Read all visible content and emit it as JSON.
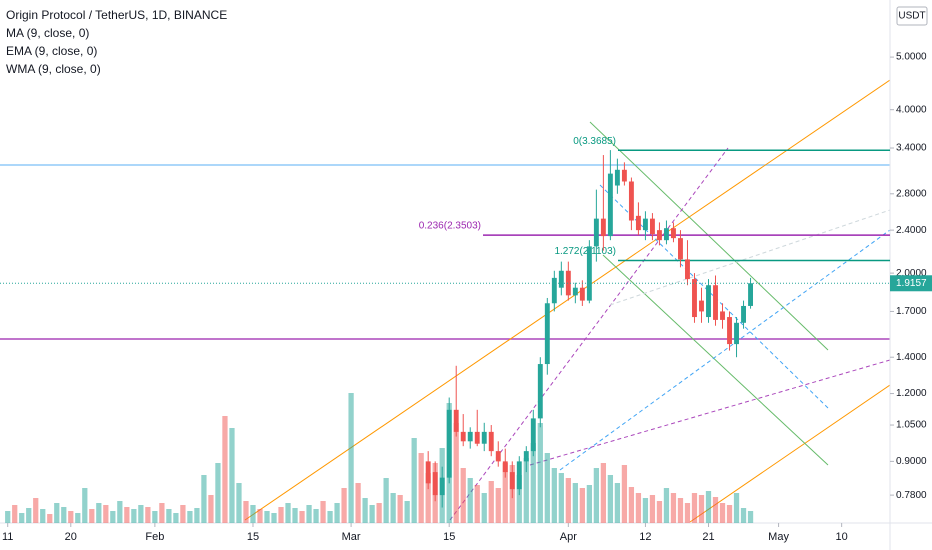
{
  "chart_data": {
    "type": "candlestick",
    "title": "Origin Protocol / TetherUS, 1D, BINANCE",
    "indicators": [
      "MA (9, close, 0)",
      "EMA (9, close, 0)",
      "WMA (9, close, 0)"
    ],
    "currency": "USDT",
    "log_scale": true,
    "up_color": "#26a69a",
    "down_color": "#ef5350",
    "ylim": [
      0.693,
      6.37
    ],
    "yticks": [
      {
        "value": 5,
        "label": "5.0000"
      },
      {
        "value": 4,
        "label": "4.0000"
      },
      {
        "value": 3.4,
        "label": "3.4000"
      },
      {
        "value": 2.8,
        "label": "2.8000"
      },
      {
        "value": 2.4,
        "label": "2.4000"
      },
      {
        "value": 2,
        "label": "2.0000"
      },
      {
        "value": 1.7,
        "label": "1.7000"
      },
      {
        "value": 1.4,
        "label": "1.4000"
      },
      {
        "value": 1.2,
        "label": "1.2000"
      },
      {
        "value": 1.05,
        "label": "1.0500"
      },
      {
        "value": 0.9,
        "label": "0.9000"
      },
      {
        "value": 0.78,
        "label": "0.7800"
      }
    ],
    "xlim": [
      -1.1,
      125.9
    ],
    "xticks": [
      {
        "value": 0,
        "label": "11"
      },
      {
        "value": 9,
        "label": "20"
      },
      {
        "value": 21,
        "label": "Feb"
      },
      {
        "value": 35,
        "label": "15"
      },
      {
        "value": 49,
        "label": "Mar"
      },
      {
        "value": 63,
        "label": "15"
      },
      {
        "value": 80,
        "label": "Apr"
      },
      {
        "value": 91,
        "label": "12"
      },
      {
        "value": 100,
        "label": "21"
      },
      {
        "value": 110,
        "label": "May"
      },
      {
        "value": 119,
        "label": "10"
      }
    ],
    "last_price": {
      "value": 1.9157,
      "label": "1.9157"
    },
    "candles": {
      "x": [
        60,
        61,
        62,
        63,
        64,
        65,
        66,
        67,
        68,
        69,
        70,
        71,
        72,
        73,
        74,
        75,
        76,
        77,
        78,
        79,
        80,
        81,
        82,
        83,
        84,
        85,
        86,
        87,
        88,
        89,
        90,
        91,
        92,
        93,
        94,
        95,
        96,
        97,
        98,
        99,
        100,
        101,
        102,
        103,
        104,
        105,
        106
      ],
      "open": [
        0.9,
        0.86,
        0.78,
        0.84,
        1.12,
        1.02,
        0.98,
        1.02,
        0.97,
        1.02,
        0.94,
        0.9,
        0.86,
        0.8,
        0.9,
        0.94,
        1.08,
        1.36,
        1.76,
        1.88,
        2.02,
        1.82,
        1.88,
        1.78,
        2.24,
        2.52,
        2.34,
        2.9,
        3.1,
        2.95,
        2.55,
        2.4,
        2.52,
        2.4,
        2.3,
        2.42,
        2.32,
        2.12,
        1.95,
        1.78,
        1.66,
        1.9,
        1.7,
        1.66,
        1.48,
        1.62,
        1.74
      ],
      "high": [
        0.94,
        0.9,
        0.88,
        1.18,
        1.35,
        1.1,
        1.04,
        1.12,
        1.06,
        1.05,
        0.98,
        0.95,
        0.9,
        0.92,
        0.96,
        1.12,
        1.4,
        1.8,
        2.02,
        2.1,
        2.1,
        1.92,
        1.94,
        2.3,
        2.85,
        3.3,
        3.37,
        3.25,
        3.2,
        3.0,
        2.7,
        2.6,
        2.58,
        2.48,
        2.5,
        2.48,
        2.4,
        2.3,
        2.0,
        1.88,
        1.95,
        1.98,
        1.76,
        1.7,
        1.66,
        1.78,
        1.96
      ],
      "low": [
        0.8,
        0.76,
        0.74,
        0.82,
        1.0,
        0.96,
        0.95,
        0.96,
        0.94,
        0.92,
        0.88,
        0.84,
        0.77,
        0.78,
        0.86,
        0.92,
        1.04,
        1.3,
        1.7,
        1.82,
        1.78,
        1.76,
        1.74,
        1.76,
        2.1,
        2.2,
        2.3,
        2.8,
        2.9,
        2.4,
        2.35,
        2.3,
        2.3,
        2.25,
        2.26,
        2.28,
        2.05,
        1.9,
        1.62,
        1.62,
        1.62,
        1.6,
        1.58,
        1.44,
        1.4,
        1.58,
        1.72
      ],
      "close": [
        0.82,
        0.78,
        0.84,
        1.12,
        1.02,
        0.98,
        1.02,
        0.97,
        1.02,
        0.94,
        0.9,
        0.86,
        0.8,
        0.9,
        0.94,
        1.08,
        1.36,
        1.76,
        1.96,
        2.02,
        1.82,
        1.88,
        1.78,
        2.24,
        2.52,
        2.34,
        3.05,
        3.1,
        2.95,
        2.5,
        2.4,
        2.52,
        2.36,
        2.3,
        2.42,
        2.32,
        2.12,
        1.95,
        1.66,
        1.7,
        1.9,
        1.64,
        1.64,
        1.48,
        1.62,
        1.74,
        1.9157
      ]
    },
    "volume": {
      "ylim": [
        0,
        250
      ],
      "colors": {
        "up": "#26a69a80",
        "down": "#ef535080"
      },
      "x": [
        0,
        1,
        2,
        3,
        4,
        5,
        6,
        7,
        8,
        9,
        10,
        11,
        12,
        13,
        14,
        15,
        16,
        17,
        18,
        19,
        20,
        21,
        22,
        23,
        24,
        25,
        26,
        27,
        28,
        29,
        30,
        31,
        32,
        33,
        34,
        35,
        36,
        37,
        38,
        39,
        40,
        41,
        42,
        43,
        44,
        45,
        46,
        47,
        48,
        49,
        50,
        51,
        52,
        53,
        54,
        55,
        56,
        57,
        58,
        59,
        60,
        61,
        62,
        63,
        64,
        65,
        66,
        67,
        68,
        69,
        70,
        71,
        72,
        73,
        74,
        75,
        76,
        77,
        78,
        79,
        80,
        81,
        82,
        83,
        84,
        85,
        86,
        87,
        88,
        89,
        90,
        91,
        92,
        93,
        94,
        95,
        96,
        97,
        98,
        99,
        100,
        101,
        102,
        103,
        104,
        105,
        106
      ],
      "values": [
        12,
        18,
        10,
        15,
        25,
        14,
        9,
        20,
        16,
        12,
        10,
        35,
        14,
        20,
        18,
        12,
        22,
        16,
        14,
        18,
        16,
        12,
        20,
        14,
        10,
        18,
        12,
        15,
        48,
        28,
        60,
        107,
        95,
        40,
        22,
        18,
        14,
        12,
        10,
        16,
        20,
        15,
        12,
        18,
        14,
        22,
        12,
        20,
        35,
        130,
        40,
        25,
        18,
        20,
        45,
        30,
        28,
        22,
        85,
        70,
        50,
        60,
        75,
        120,
        100,
        55,
        45,
        38,
        30,
        42,
        35,
        60,
        58,
        48,
        65,
        80,
        100,
        70,
        55,
        50,
        45,
        40,
        35,
        38,
        55,
        60,
        48,
        40,
        58,
        36,
        30,
        25,
        28,
        22,
        35,
        30,
        25,
        20,
        30,
        28,
        32,
        26,
        20,
        18,
        30,
        15,
        12
      ],
      "side": [
        "up",
        "down",
        "up",
        "up",
        "down",
        "up",
        "down",
        "up",
        "up",
        "down",
        "up",
        "up",
        "down",
        "up",
        "down",
        "up",
        "up",
        "down",
        "up",
        "up",
        "down",
        "up",
        "down",
        "up",
        "up",
        "down",
        "up",
        "up",
        "up",
        "down",
        "up",
        "down",
        "up",
        "up",
        "down",
        "up",
        "down",
        "up",
        "up",
        "down",
        "up",
        "up",
        "down",
        "up",
        "up",
        "down",
        "up",
        "up",
        "down",
        "up",
        "down",
        "up",
        "up",
        "down",
        "up",
        "up",
        "down",
        "up",
        "up",
        "down",
        "down",
        "down",
        "up",
        "up",
        "down",
        "down",
        "up",
        "down",
        "up",
        "down",
        "down",
        "down",
        "down",
        "up",
        "up",
        "up",
        "up",
        "up",
        "up",
        "up",
        "down",
        "up",
        "down",
        "up",
        "up",
        "down",
        "up",
        "up",
        "down",
        "down",
        "down",
        "up",
        "down",
        "down",
        "up",
        "down",
        "down",
        "down",
        "down",
        "down",
        "up",
        "down",
        "down",
        "down",
        "up",
        "up",
        "up"
      ]
    },
    "fib_levels": [
      {
        "label": "0(3.3685)",
        "price": 3.3685,
        "color": "#089981"
      },
      {
        "label": "0.236(2.3503)",
        "price": 2.3503,
        "color": "#9c27b0"
      },
      {
        "label": "1.272(2.1103)",
        "price": 2.1103,
        "color": "#089981"
      }
    ]
  }
}
